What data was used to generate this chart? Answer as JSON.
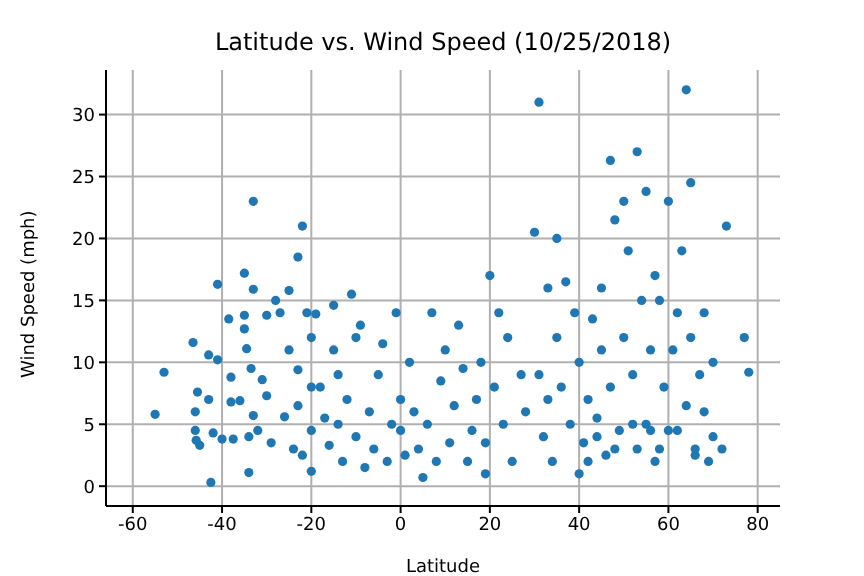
{
  "chart_data": {
    "type": "scatter",
    "title": "Latitude vs. Wind Speed (10/25/2018)",
    "xlabel": "Latitude",
    "ylabel": "Wind Speed (mph)",
    "xlim": [
      -66,
      85
    ],
    "xticks": [
      -60,
      -40,
      -20,
      0,
      20,
      40,
      60,
      80
    ],
    "ylim": [
      -1.6,
      33.6
    ],
    "yticks": [
      0,
      5,
      10,
      15,
      20,
      25,
      30
    ],
    "grid": true,
    "marker": "circle",
    "series": [
      {
        "color": "#1f77b4",
        "x": [
          -55,
          -53,
          -46.5,
          -46,
          -45.5,
          -46,
          -45.8,
          -45,
          -43,
          -43,
          -42.5,
          -42,
          -41,
          -41,
          -40,
          -38.5,
          -38,
          -38,
          -37.5,
          -36,
          -35,
          -35,
          -35,
          -34.5,
          -34,
          -34,
          -33.5,
          -33,
          -33,
          -33,
          -32,
          -31,
          -30,
          -30,
          -29,
          -28,
          -27,
          -26,
          -25,
          -25,
          -24,
          -23,
          -23,
          -23,
          -22,
          -22,
          -21,
          -20,
          -20,
          -20,
          -20,
          -19,
          -18,
          -17,
          -16,
          -15,
          -15,
          -14,
          -14,
          -13,
          -12,
          -11,
          -10,
          -10,
          -9,
          -8,
          -7,
          -6,
          -5,
          -4,
          -3,
          -2,
          -1,
          0,
          0,
          1,
          2,
          3,
          4,
          5,
          6,
          7,
          8,
          9,
          10,
          11,
          12,
          13,
          14,
          15,
          16,
          17,
          18,
          19,
          19,
          20,
          21,
          22,
          23,
          24,
          25,
          27,
          28,
          30,
          31,
          31,
          32,
          33,
          33,
          34,
          35,
          36,
          37,
          38,
          39,
          40,
          40,
          41,
          42,
          43,
          44,
          45,
          46,
          47,
          47,
          48,
          49,
          50,
          50,
          51,
          52,
          53,
          53,
          54,
          55,
          55,
          56,
          57,
          58,
          59,
          60,
          60,
          62,
          63,
          64,
          64,
          65,
          65,
          66,
          67,
          68,
          70,
          70,
          72,
          73,
          77,
          78,
          68,
          61,
          57,
          45,
          35,
          42,
          44,
          48,
          52,
          56,
          58,
          62,
          66,
          69
        ],
        "values": [
          5.8,
          9.2,
          11.6,
          6,
          7.6,
          4.5,
          3.7,
          3.3,
          10.6,
          7,
          0.3,
          4.3,
          16.3,
          10.2,
          3.8,
          13.5,
          8.8,
          6.8,
          3.8,
          6.9,
          17.2,
          13.8,
          12.7,
          11.1,
          4,
          1.1,
          9.5,
          23,
          15.9,
          5.7,
          4.5,
          8.6,
          13.8,
          7.3,
          3.5,
          15,
          14,
          5.6,
          15.8,
          11,
          3,
          18.5,
          9.4,
          6.5,
          21,
          2.5,
          14,
          12,
          8,
          4.5,
          1.2,
          13.9,
          8,
          5.5,
          3.3,
          14.6,
          11,
          9,
          5,
          2,
          7,
          15.5,
          12,
          4,
          13,
          1.5,
          6,
          3,
          9,
          11.5,
          2,
          5,
          14,
          7,
          4.5,
          2.5,
          10,
          6,
          3,
          0.7,
          5,
          14,
          2,
          8.5,
          11,
          3.5,
          6.5,
          13,
          9.5,
          2,
          4.5,
          7,
          10,
          1,
          3.5,
          17,
          8,
          14,
          5,
          12,
          2,
          9,
          6,
          20.5,
          31,
          9,
          4,
          16,
          7,
          2,
          12,
          8,
          16.5,
          5,
          14,
          1,
          10,
          3.5,
          7,
          13.5,
          5.5,
          11,
          2.5,
          26.3,
          8,
          21.5,
          4.5,
          23,
          12,
          19,
          9,
          27,
          3,
          15,
          23.8,
          5,
          11,
          2,
          15,
          8,
          23,
          4.5,
          14,
          19,
          32,
          6.5,
          24.5,
          12,
          2.5,
          9,
          14,
          10,
          4,
          3,
          21,
          12,
          9.2,
          6,
          11,
          17,
          16,
          20,
          2,
          4,
          3,
          5,
          4.5,
          3,
          4.5,
          3,
          2
        ]
      }
    ]
  }
}
